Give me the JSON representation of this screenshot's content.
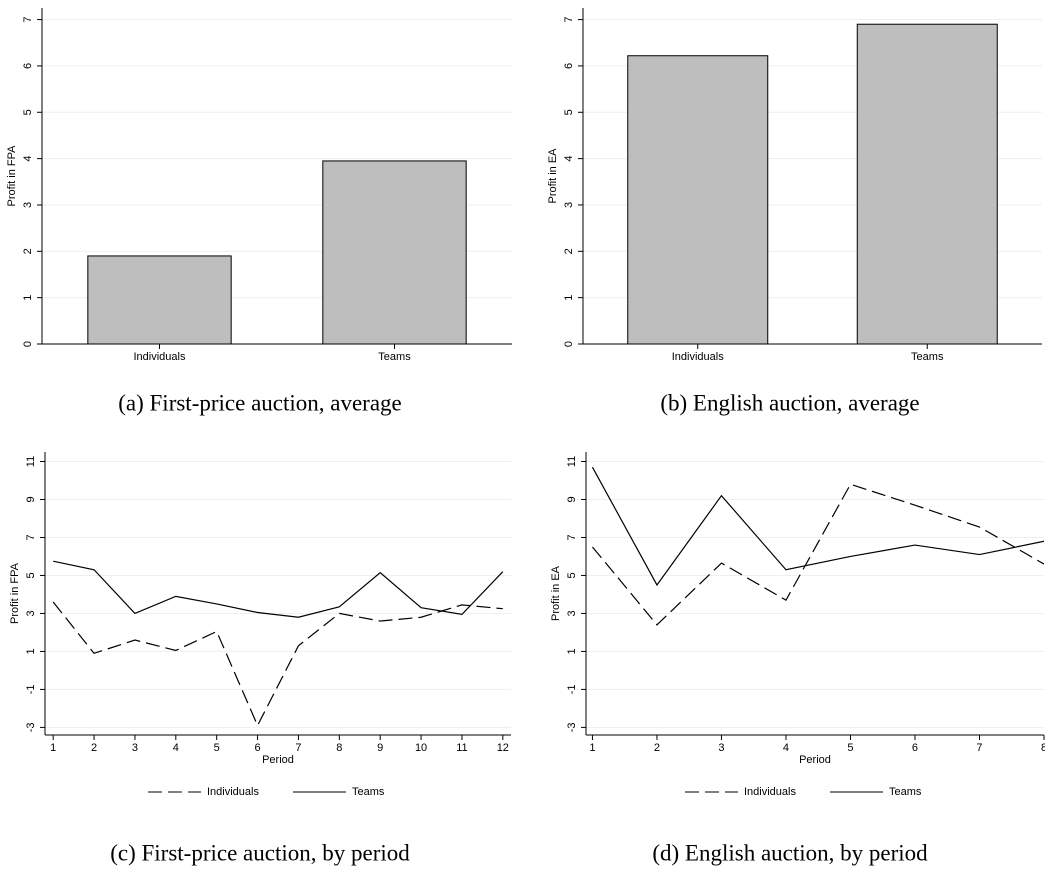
{
  "chart_data": [
    {
      "type": "bar",
      "caption": "(a) First-price auction, average",
      "ylabel": "Profit in FPA",
      "categories": [
        "Individuals",
        "Teams"
      ],
      "values": [
        1.9,
        3.95
      ],
      "color": "#bebebe",
      "ylim": [
        0,
        7.25
      ],
      "yticks": [
        0,
        1,
        2,
        3,
        4,
        5,
        6,
        7
      ],
      "grid": true
    },
    {
      "type": "bar",
      "caption": "(b) English auction, average",
      "ylabel": "Profit in EA",
      "categories": [
        "Individuals",
        "Teams"
      ],
      "values": [
        6.22,
        6.9
      ],
      "color": "#bebebe",
      "ylim": [
        0,
        7.25
      ],
      "yticks": [
        0,
        1,
        2,
        3,
        4,
        5,
        6,
        7
      ],
      "grid": true
    },
    {
      "type": "line",
      "caption": "(c) First-price auction, by period",
      "ylabel": "Profit in FPA",
      "xlabel": "Period",
      "x": [
        1,
        2,
        3,
        4,
        5,
        6,
        7,
        8,
        9,
        10,
        11,
        12
      ],
      "series": [
        {
          "name": "Individuals",
          "color": "#000000",
          "dash": "dashed",
          "values": [
            3.6,
            0.9,
            1.6,
            1.05,
            2.05,
            -2.9,
            1.3,
            3.0,
            2.6,
            2.8,
            3.45,
            3.25
          ]
        },
        {
          "name": "Teams",
          "color": "#000000",
          "dash": "solid",
          "values": [
            5.75,
            5.3,
            3.0,
            3.9,
            3.5,
            3.05,
            2.8,
            3.35,
            5.15,
            3.3,
            2.95,
            5.2
          ]
        }
      ],
      "xlim": [
        0.8,
        12.2
      ],
      "xticks": [
        1,
        2,
        3,
        4,
        5,
        6,
        7,
        8,
        9,
        10,
        11,
        12
      ],
      "ylim": [
        -3.4,
        11.5
      ],
      "yticks": [
        -3,
        -1,
        1,
        3,
        5,
        7,
        9,
        11
      ],
      "grid": true
    },
    {
      "type": "line",
      "caption": "(d) English auction, by period",
      "ylabel": "Profit in EA",
      "xlabel": "Period",
      "x": [
        1,
        2,
        3,
        4,
        5,
        6,
        7,
        8
      ],
      "series": [
        {
          "name": "Individuals",
          "color": "#000000",
          "dash": "dashed",
          "values": [
            6.5,
            2.4,
            5.65,
            3.7,
            9.8,
            8.7,
            7.55,
            5.6
          ]
        },
        {
          "name": "Teams",
          "color": "#000000",
          "dash": "solid",
          "values": [
            10.7,
            4.5,
            9.2,
            5.3,
            6.0,
            6.6,
            6.1,
            6.8
          ]
        }
      ],
      "xlim": [
        0.9,
        8.0
      ],
      "xticks": [
        1,
        2,
        3,
        4,
        5,
        6,
        7,
        8
      ],
      "ylim": [
        -3.4,
        11.5
      ],
      "yticks": [
        -3,
        -1,
        1,
        3,
        5,
        7,
        9,
        11
      ],
      "grid": true
    }
  ]
}
